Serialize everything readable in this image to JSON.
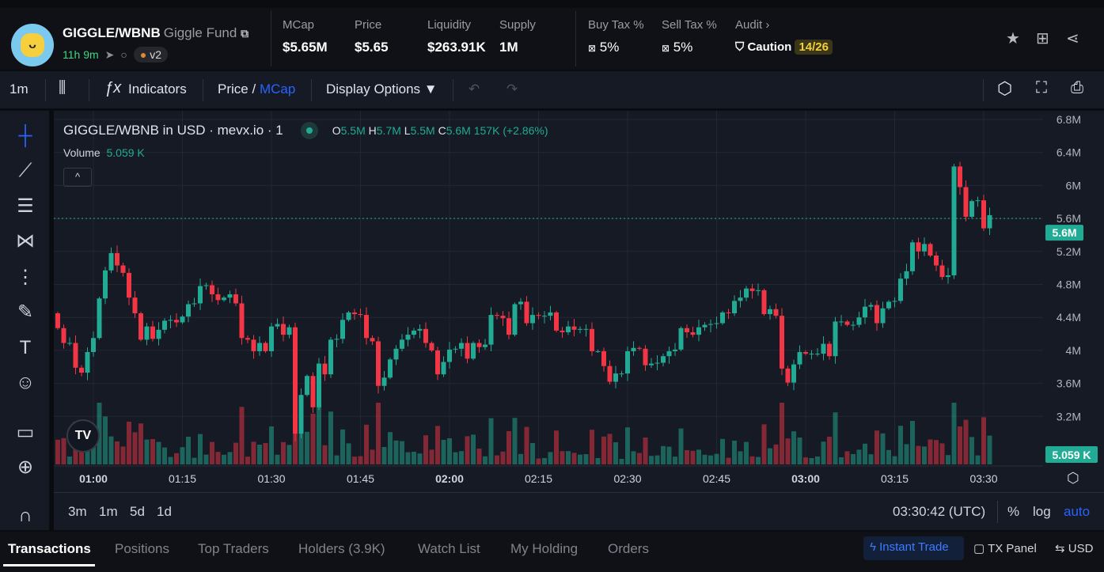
{
  "header": {
    "pair": "GIGGLE/WBNB",
    "name": "Giggle Fund",
    "age": "11h 9m",
    "dex_version": "v2",
    "stats": [
      {
        "label": "MCap",
        "value": "$5.65M"
      },
      {
        "label": "Price",
        "value": "$5.65"
      },
      {
        "label": "Liquidity",
        "value": "$263.91K"
      },
      {
        "label": "Supply",
        "value": "1M"
      }
    ],
    "buy_tax": {
      "label": "Buy Tax %",
      "value": "5%"
    },
    "sell_tax": {
      "label": "Sell Tax %",
      "value": "5%"
    },
    "audit": {
      "label": "Audit",
      "status": "Caution",
      "score": "14/26"
    }
  },
  "toolbar": {
    "interval": "1m",
    "indicators": "Indicators",
    "price": "Price",
    "slash": "/",
    "mcap": "MCap",
    "display_options": "Display Options ▼"
  },
  "legend": {
    "title": "GIGGLE/WBNB in USD · mevx.io · 1",
    "o_label": "O",
    "o": "5.5M",
    "h_label": "H",
    "h": "5.7M",
    "l_label": "L",
    "l": "5.5M",
    "c_label": "C",
    "c": "5.6M",
    "change": "157K (+2.86%)",
    "volume_label": "Volume",
    "volume": "5.059 K"
  },
  "chart_bottom": {
    "ranges": [
      "3m",
      "1m",
      "5d",
      "1d"
    ],
    "time": "03:30:42 (UTC)",
    "percent": "%",
    "log": "log",
    "auto": "auto"
  },
  "tabs": [
    "Transactions",
    "Positions",
    "Top Traders",
    "Holders (3.9K)",
    "Watch List",
    "My Holding",
    "Orders"
  ],
  "tab_actions": {
    "instant_trade": "Instant Trade",
    "tx_panel": "TX Panel",
    "currency": "USD"
  },
  "colors": {
    "up": "#22ab94",
    "down": "#f23645",
    "accent": "#2962ff"
  },
  "chart_data": {
    "type": "candlestick",
    "title": "GIGGLE/WBNB in USD · mevx.io · 1",
    "y_ticks": [
      "6.8M",
      "6.4M",
      "6M",
      "5.6M",
      "5.2M",
      "4.8M",
      "4.4M",
      "4M",
      "3.6M",
      "3.2M"
    ],
    "y_range_millions": [
      2.8,
      6.8
    ],
    "x_ticks": [
      {
        "t": "01:00",
        "bold": true
      },
      {
        "t": "01:15"
      },
      {
        "t": "01:30"
      },
      {
        "t": "01:45"
      },
      {
        "t": "02:00",
        "bold": true
      },
      {
        "t": "02:15"
      },
      {
        "t": "02:30"
      },
      {
        "t": "02:45"
      },
      {
        "t": "03:00",
        "bold": true
      },
      {
        "t": "03:15"
      },
      {
        "t": "03:30"
      }
    ],
    "last_price_label": "5.6M",
    "last_volume_label": "5.059 K",
    "open_first": 4.45,
    "closes_millions": [
      4.27,
      4.09,
      4.09,
      3.79,
      3.73,
      3.98,
      4.15,
      4.63,
      4.97,
      5.18,
      5.03,
      4.94,
      4.64,
      4.45,
      4.13,
      4.29,
      4.14,
      4.25,
      4.36,
      4.37,
      4.34,
      4.41,
      4.56,
      4.57,
      4.78,
      4.79,
      4.68,
      4.61,
      4.64,
      4.68,
      4.57,
      4.15,
      4.13,
      3.99,
      4.09,
      3.99,
      4.29,
      4.32,
      4.19,
      4.28,
      2.99,
      3.46,
      3.69,
      3.31,
      3.84,
      3.71,
      4.13,
      4.14,
      4.37,
      4.46,
      4.44,
      4.43,
      4.15,
      4.11,
      3.57,
      3.67,
      3.89,
      4.02,
      4.13,
      4.19,
      4.24,
      4.26,
      4.09,
      4.0,
      3.71,
      3.86,
      4.01,
      4.02,
      4.09,
      3.9,
      4.09,
      4.04,
      4.07,
      4.43,
      4.42,
      4.39,
      4.19,
      4.56,
      4.59,
      4.33,
      4.43,
      4.42,
      4.42,
      4.46,
      4.24,
      4.22,
      4.29,
      4.25,
      4.26,
      4.26,
      3.99,
      3.99,
      3.81,
      3.62,
      3.72,
      3.72,
      3.99,
      4.03,
      4.02,
      3.82,
      3.84,
      3.85,
      3.93,
      3.99,
      4.01,
      4.27,
      4.22,
      4.19,
      4.28,
      4.31,
      4.32,
      4.33,
      4.46,
      4.45,
      4.6,
      4.64,
      4.75,
      4.72,
      4.73,
      4.44,
      4.5,
      4.42,
      3.78,
      3.61,
      3.83,
      3.98,
      3.96,
      3.96,
      3.96,
      4.08,
      3.93,
      4.35,
      4.35,
      4.31,
      4.31,
      4.4,
      4.53,
      4.55,
      4.33,
      4.51,
      4.59,
      4.6,
      4.87,
      4.96,
      5.31,
      5.2,
      5.29,
      5.15,
      5.03,
      4.89,
      4.91,
      6.23,
      5.98,
      5.62,
      5.81,
      5.82,
      5.48,
      5.64
    ]
  }
}
